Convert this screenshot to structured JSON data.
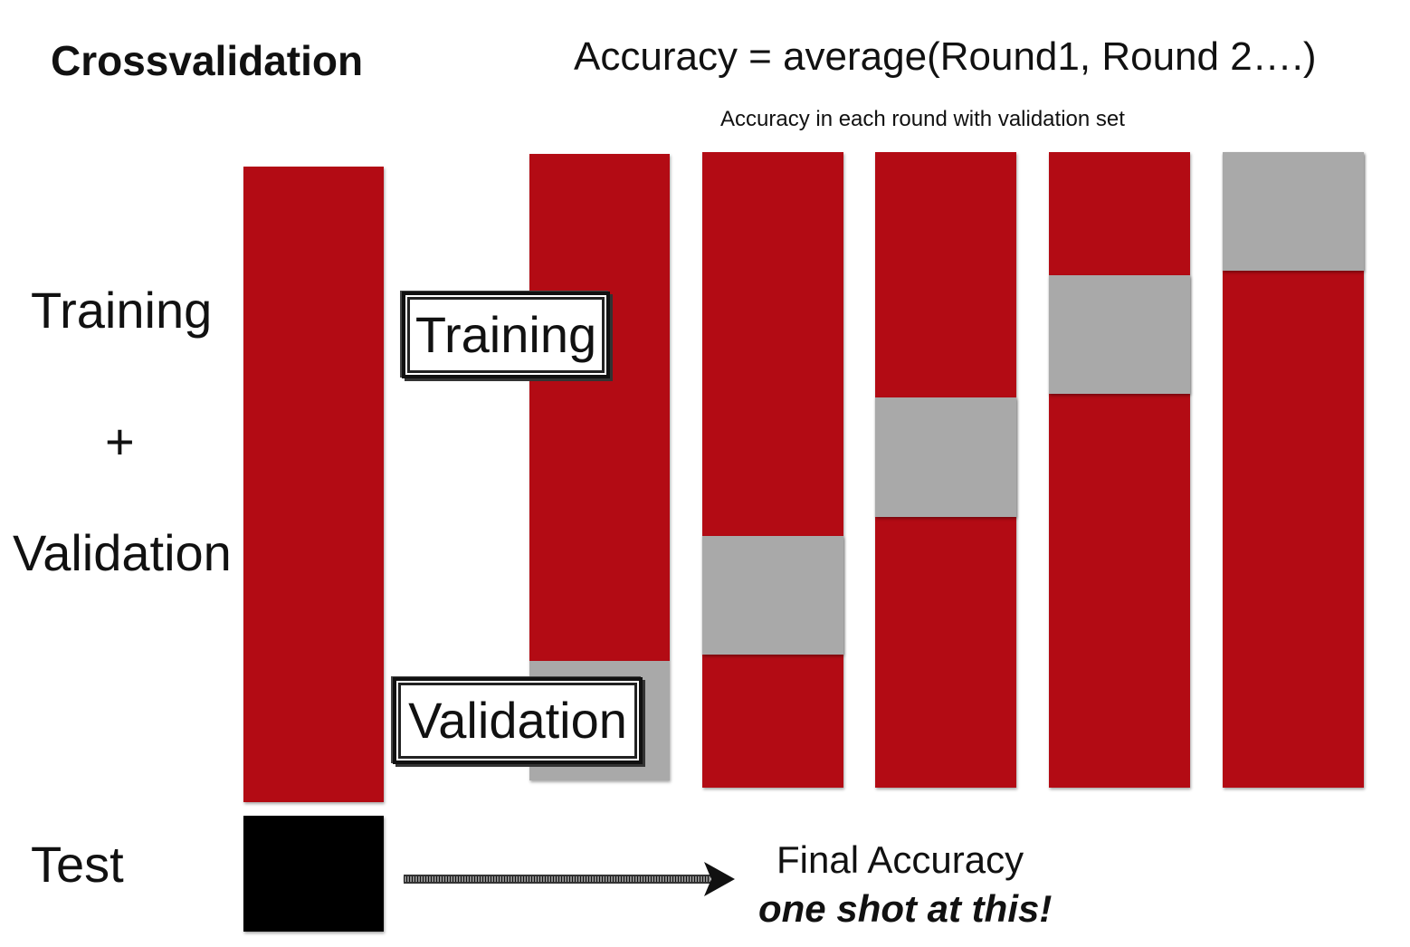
{
  "title": "Crossvalidation",
  "formula": "Accuracy = average(Round1, Round 2….)",
  "subtitle": "Accuracy in each round with validation set",
  "left_labels": {
    "training": "Training",
    "plus": "+",
    "validation": "Validation",
    "test": "Test"
  },
  "box_labels": {
    "training": "Training",
    "validation": "Validation"
  },
  "final": {
    "line1": "Final Accuracy",
    "line2": "one shot at this!"
  },
  "colors": {
    "training_red": "#b30b14",
    "validation_gray": "#a9a9a9",
    "test_black": "#000000"
  }
}
